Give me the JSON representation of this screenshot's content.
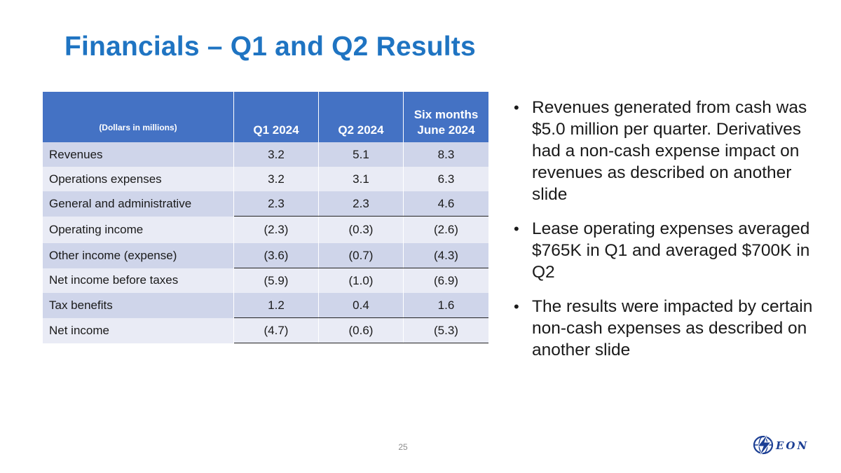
{
  "title": "Financials – Q1 and Q2 Results",
  "table": {
    "headers": {
      "label": "(Dollars in millions)",
      "q1": "Q1 2024",
      "q2": "Q2 2024",
      "six_line1": "Six months",
      "six_line2": "June 2024"
    },
    "rows": [
      {
        "label": "Revenues",
        "q1": "3.2",
        "q2": "5.1",
        "six": "8.3"
      },
      {
        "label": "Operations expenses",
        "q1": "3.2",
        "q2": "3.1",
        "six": "6.3"
      },
      {
        "label": "General and administrative",
        "q1": "2.3",
        "q2": "2.3",
        "six": "4.6"
      },
      {
        "label": "Operating income",
        "q1": "(2.3)",
        "q2": "(0.3)",
        "six": "(2.6)"
      },
      {
        "label": "Other income (expense)",
        "q1": "(3.6)",
        "q2": "(0.7)",
        "six": "(4.3)"
      },
      {
        "label": "Net income before taxes",
        "q1": "(5.9)",
        "q2": "(1.0)",
        "six": "(6.9)"
      },
      {
        "label": "Tax benefits",
        "q1": "1.2",
        "q2": "0.4",
        "six": "1.6"
      },
      {
        "label": "Net income",
        "q1": "(4.7)",
        "q2": "(0.6)",
        "six": "(5.3)"
      }
    ]
  },
  "bullets": [
    "Revenues generated from cash was $5.0 million per quarter. Derivatives had a non-cash expense impact on revenues as described on another slide",
    "Lease operating expenses averaged $765K in Q1 and averaged $700K in Q2",
    "The results were impacted by certain non-cash expenses as described on another slide"
  ],
  "bullet_symbol": "•",
  "page_number": "25",
  "logo": {
    "text": "EON",
    "icon": "lightning-globe-icon"
  },
  "colors": {
    "title": "#1f74c2",
    "header_bg": "#4472c4",
    "row_dark": "#cfd5ea",
    "row_light": "#e9ebf5",
    "logo": "#1c3f94"
  }
}
